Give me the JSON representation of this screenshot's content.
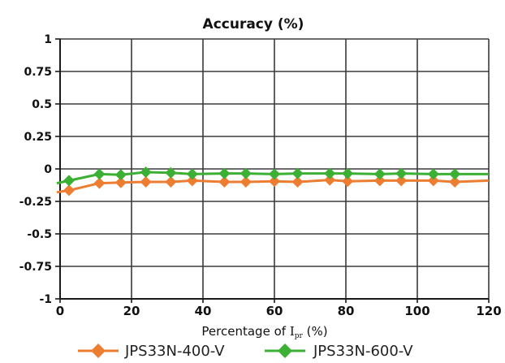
{
  "colors": {
    "background": "#ffffff",
    "grid": "#3a3a3a",
    "axis": "#1a1a1a",
    "text": "#111111"
  },
  "chart_data": {
    "type": "line",
    "title": "Accuracy (%)",
    "xlabel": {
      "prefix": "Percentage of ",
      "var": "I",
      "sub": "pr",
      "suffix": " (%)"
    },
    "ylabel": "",
    "xlim": [
      0,
      120
    ],
    "ylim": [
      -1,
      1
    ],
    "x_ticks": [
      0,
      20,
      40,
      60,
      80,
      100,
      120
    ],
    "x_tick_labels": [
      "0",
      "20",
      "40",
      "60",
      "80",
      "100",
      "120"
    ],
    "y_ticks": [
      1,
      0.75,
      0.5,
      0.25,
      0,
      -0.25,
      -0.5,
      -0.75,
      -1
    ],
    "y_tick_labels": [
      "1",
      "0.75",
      "0.5",
      "0.25",
      "0",
      "-0.25",
      "-0.5",
      "-0.75",
      "-1"
    ],
    "grid": true,
    "legend_position": "bottom",
    "series": [
      {
        "name": "JPS33N-400-V",
        "color": "#ed7d31",
        "marker": "diamond",
        "x": [
          -2,
          2.5,
          11,
          17,
          24,
          31,
          37,
          46,
          52,
          60,
          66.5,
          75.5,
          80.5,
          89.5,
          95.5,
          104.5,
          110.5,
          120
        ],
        "y": [
          -0.18,
          -0.165,
          -0.11,
          -0.105,
          -0.1,
          -0.1,
          -0.09,
          -0.1,
          -0.1,
          -0.095,
          -0.1,
          -0.085,
          -0.095,
          -0.09,
          -0.09,
          -0.09,
          -0.1,
          -0.09
        ]
      },
      {
        "name": "JPS33N-600-V",
        "color": "#3cb034",
        "marker": "diamond",
        "x": [
          -2,
          2.5,
          11,
          17,
          24,
          31,
          37,
          46,
          52,
          60,
          66.5,
          75.5,
          80.5,
          89.5,
          95.5,
          104.5,
          110.5,
          120
        ],
        "y": [
          -0.11,
          -0.09,
          -0.04,
          -0.045,
          -0.025,
          -0.03,
          -0.04,
          -0.035,
          -0.035,
          -0.04,
          -0.035,
          -0.035,
          -0.035,
          -0.04,
          -0.035,
          -0.04,
          -0.04,
          -0.04
        ]
      }
    ]
  }
}
